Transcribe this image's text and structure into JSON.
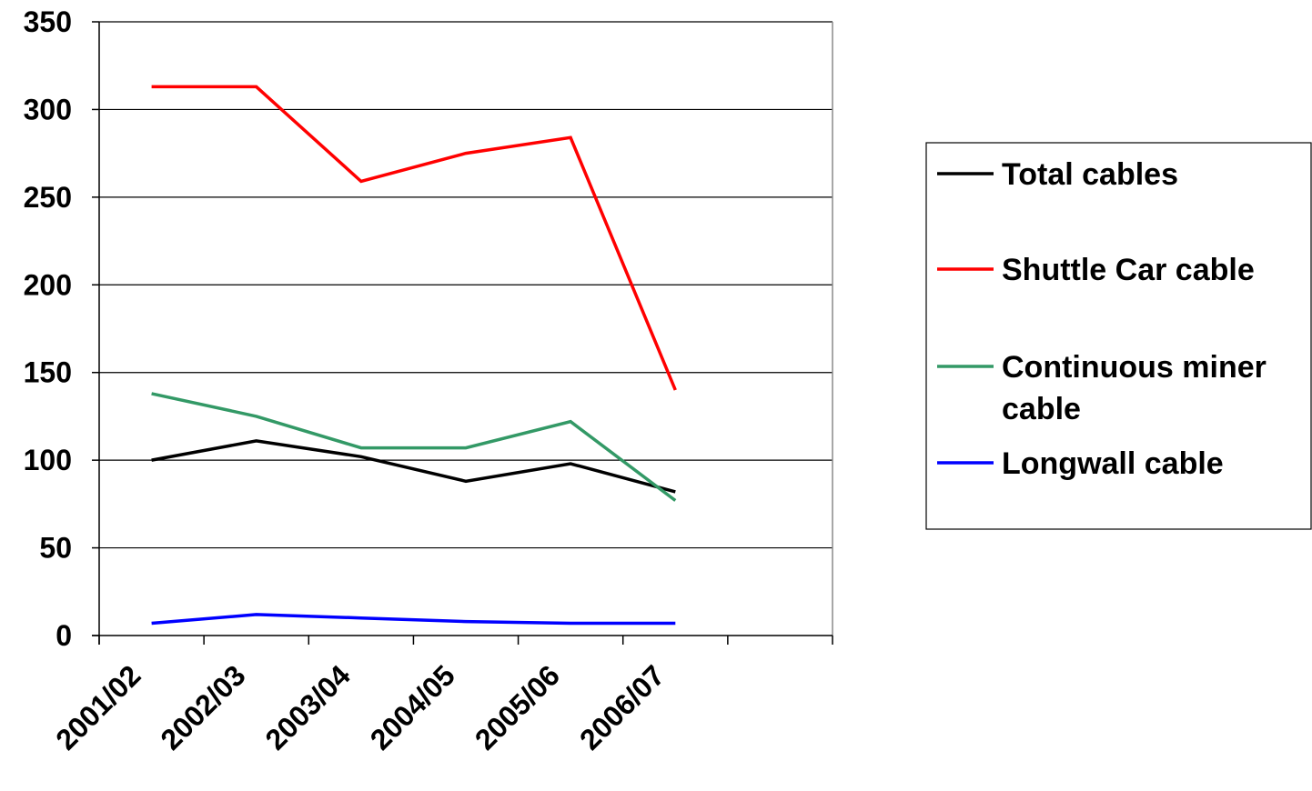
{
  "chart_data": {
    "type": "line",
    "categories": [
      "2001/02",
      "2002/03",
      "2003/04",
      "2004/05",
      "2005/06",
      "2006/07"
    ],
    "ylim": [
      0,
      350
    ],
    "yticks": [
      0,
      50,
      100,
      150,
      200,
      250,
      300,
      350
    ],
    "grid": "horizontal",
    "legend_position": "right",
    "series": [
      {
        "name": "Total cables",
        "color": "#000000",
        "values": [
          100,
          111,
          102,
          88,
          98,
          82
        ]
      },
      {
        "name": "Shuttle Car cable",
        "color": "#ff0000",
        "values": [
          313,
          313,
          259,
          275,
          284,
          140
        ]
      },
      {
        "name": "Continuous miner cable",
        "color": "#339966",
        "values": [
          138,
          125,
          107,
          107,
          122,
          77
        ]
      },
      {
        "name": "Longwall cable",
        "color": "#0000ff",
        "values": [
          7,
          12,
          10,
          8,
          7,
          7
        ]
      }
    ]
  }
}
